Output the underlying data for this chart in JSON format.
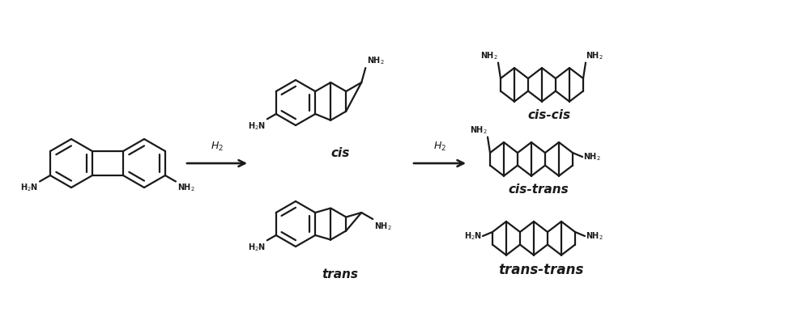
{
  "bg_color": "#ffffff",
  "line_color": "#1a1a1a",
  "line_width": 1.6,
  "figsize": [
    10.0,
    4.07
  ],
  "dpi": 100,
  "labels": {
    "cis": "cis",
    "trans": "trans",
    "cis_cis": "cis-cis",
    "cis_trans": "cis-trans",
    "trans_trans": "trans-trans",
    "h2_left": "H$_2$",
    "h2_right": "H$_2$"
  },
  "font_italic_size": 11,
  "font_label_size": 7
}
